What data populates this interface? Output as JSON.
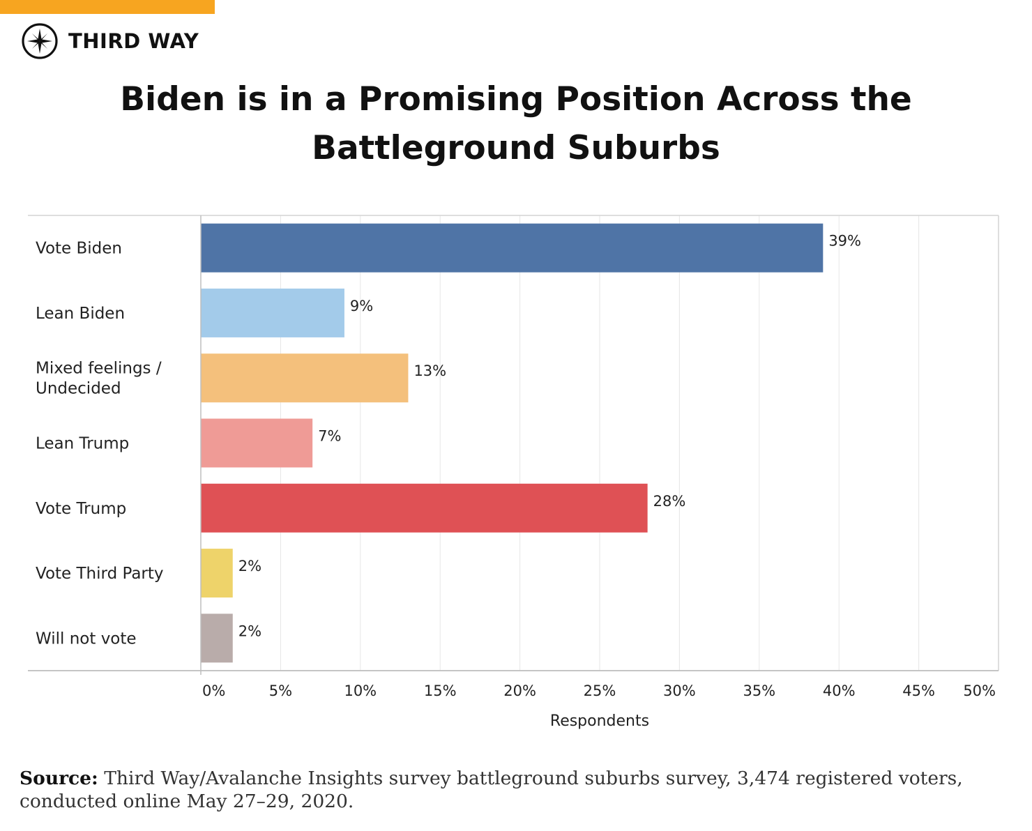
{
  "brand": {
    "name": "THIRD WAY",
    "logo_icon": "compass-star-icon",
    "accent_color": "#f7a520"
  },
  "title_lines": [
    "Biden is in a Promising Position Across the",
    "Battleground Suburbs"
  ],
  "chart_data": {
    "type": "bar",
    "orientation": "horizontal",
    "title": "Biden is in a Promising Position Across the Battleground Suburbs",
    "categories": [
      [
        "Vote Biden"
      ],
      [
        "Lean Biden"
      ],
      [
        "Mixed feelings /",
        "Undecided"
      ],
      [
        "Lean Trump"
      ],
      [
        "Vote Trump"
      ],
      [
        "Vote Third Party"
      ],
      [
        "Will not vote"
      ]
    ],
    "values": [
      39,
      9,
      13,
      7,
      28,
      2,
      2
    ],
    "value_labels": [
      "39%",
      "9%",
      "13%",
      "7%",
      "28%",
      "2%",
      "2%"
    ],
    "colors": [
      "#4f74a6",
      "#a3cbea",
      "#f4c07c",
      "#ef9b96",
      "#df5155",
      "#eed36a",
      "#b9acaa"
    ],
    "xlabel": "Respondents",
    "ylabel": "",
    "xlim": [
      0,
      50
    ],
    "ticks": [
      0,
      5,
      10,
      15,
      20,
      25,
      30,
      35,
      40,
      45,
      50
    ],
    "tick_labels": [
      "0%",
      "5%",
      "10%",
      "15%",
      "20%",
      "25%",
      "30%",
      "35%",
      "40%",
      "45%",
      "50%"
    ],
    "grid": true,
    "legend": "none"
  },
  "source": {
    "label": "Source:",
    "text": " Third Way/Avalanche Insights survey battleground suburbs survey, 3,474 registered voters, conducted online May 27–29, 2020."
  }
}
